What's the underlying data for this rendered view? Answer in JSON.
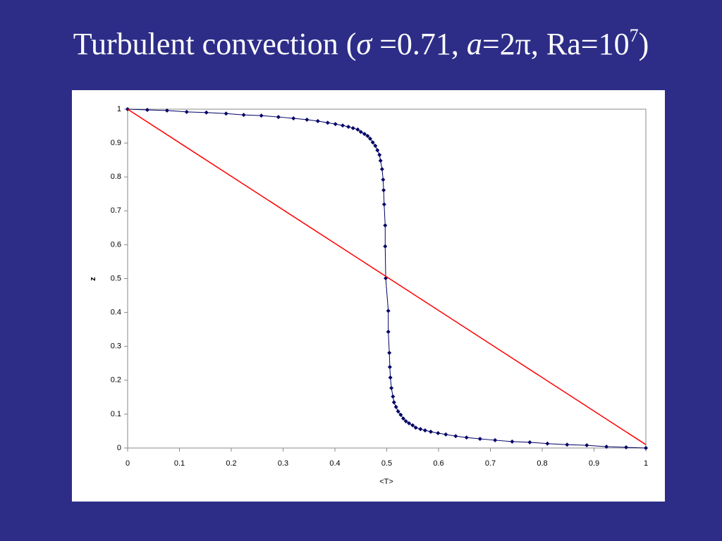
{
  "chart_data": {
    "type": "scatter",
    "title_parts": [
      "Turbulent convection (",
      "σ",
      " =0.71, ",
      "a",
      "=2π, Ra=10",
      "7",
      ")"
    ],
    "xlabel": "<T>",
    "ylabel": "z",
    "xlim": [
      0,
      1
    ],
    "ylim": [
      0,
      1
    ],
    "xticks": [
      0,
      0.1,
      0.2,
      0.3,
      0.4,
      0.5,
      0.6,
      0.7,
      0.8,
      0.9,
      1
    ],
    "yticks": [
      0,
      0.1,
      0.2,
      0.3,
      0.4,
      0.5,
      0.6,
      0.7,
      0.8,
      0.9,
      1
    ],
    "series": [
      {
        "color": "#000066",
        "markers": true,
        "x": [
          0,
          0.038,
          0.076,
          0.114,
          0.152,
          0.19,
          0.224,
          0.258,
          0.291,
          0.32,
          0.346,
          0.367,
          0.386,
          0.401,
          0.415,
          0.426,
          0.435,
          0.444,
          0.45,
          0.457,
          0.463,
          0.468,
          0.473,
          0.478,
          0.482,
          0.486,
          0.488,
          0.491,
          0.493,
          0.494,
          0.495,
          0.497,
          0.497,
          0.498,
          0.503,
          0.503,
          0.505,
          0.506,
          0.507,
          0.509,
          0.512,
          0.514,
          0.518,
          0.522,
          0.527,
          0.532,
          0.537,
          0.543,
          0.55,
          0.556,
          0.565,
          0.574,
          0.585,
          0.599,
          0.614,
          0.633,
          0.654,
          0.68,
          0.709,
          0.742,
          0.776,
          0.81,
          0.848,
          0.886,
          0.924,
          0.962,
          1
        ],
        "values": [
          1,
          0.998,
          0.996,
          0.992,
          0.99,
          0.987,
          0.983,
          0.981,
          0.977,
          0.973,
          0.969,
          0.965,
          0.96,
          0.956,
          0.952,
          0.948,
          0.944,
          0.94,
          0.933,
          0.927,
          0.921,
          0.913,
          0.902,
          0.892,
          0.879,
          0.865,
          0.848,
          0.823,
          0.792,
          0.761,
          0.719,
          0.657,
          0.595,
          0.501,
          0.405,
          0.343,
          0.281,
          0.239,
          0.208,
          0.177,
          0.152,
          0.135,
          0.121,
          0.108,
          0.098,
          0.087,
          0.079,
          0.073,
          0.067,
          0.06,
          0.056,
          0.052,
          0.048,
          0.044,
          0.04,
          0.035,
          0.031,
          0.027,
          0.023,
          0.019,
          0.017,
          0.013,
          0.01,
          0.008,
          0.004,
          0.002,
          0
        ]
      },
      {
        "color": "#ff0000",
        "markers": false,
        "x": [
          0,
          1
        ],
        "values": [
          1,
          0.01
        ]
      }
    ]
  }
}
